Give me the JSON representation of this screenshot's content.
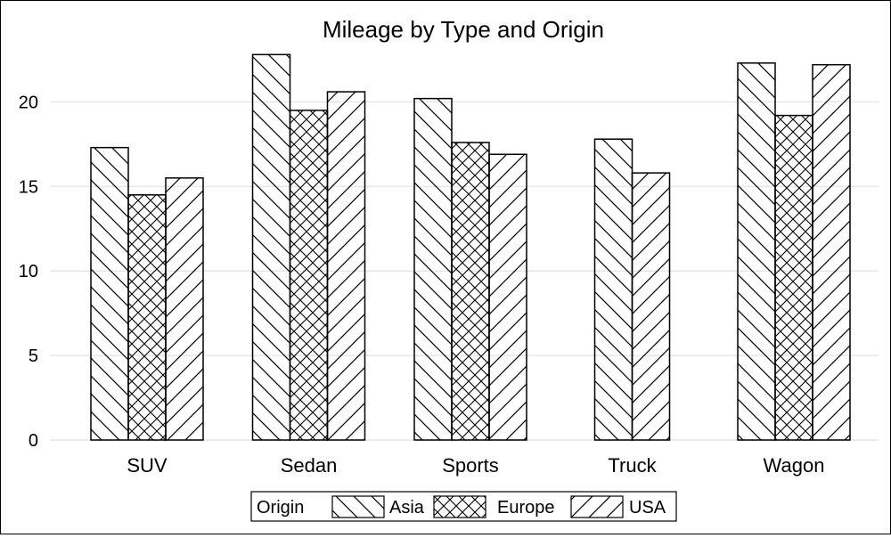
{
  "chart_data": {
    "type": "bar",
    "title": "Mileage by Type and Origin",
    "xlabel": "",
    "ylabel": "",
    "categories": [
      "SUV",
      "Sedan",
      "Sports",
      "Truck",
      "Wagon"
    ],
    "series": [
      {
        "name": "Asia",
        "pattern": "diagonal-backslash",
        "values": [
          17.3,
          22.8,
          20.2,
          17.8,
          22.3
        ]
      },
      {
        "name": "Europe",
        "pattern": "crosshatch",
        "values": [
          14.5,
          19.5,
          17.6,
          null,
          19.2
        ]
      },
      {
        "name": "USA",
        "pattern": "diagonal-slash",
        "values": [
          15.5,
          20.6,
          16.9,
          15.8,
          22.2
        ]
      }
    ],
    "ylim": [
      0,
      23.5
    ],
    "yticks": [
      0,
      5,
      10,
      15,
      20
    ],
    "grid": true,
    "legend": {
      "title": "Origin",
      "placement": "bottom-center"
    },
    "colors": {
      "bar_fill": "#ffffff",
      "stroke": "#000000",
      "grid": "#e6e6e6"
    }
  }
}
